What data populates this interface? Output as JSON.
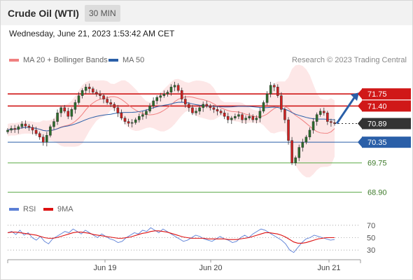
{
  "header": {
    "symbol": "Crude Oil (WTI)",
    "timeframe": "30 MIN",
    "timestamp": "Wednesday, June 21, 2023 1:53:42 AM CET"
  },
  "legend": {
    "ma20": {
      "label": "MA 20 + Bollinger Bands",
      "color": "#f08080"
    },
    "ma50": {
      "label": "MA 50",
      "color": "#2a5fa8"
    },
    "credit": "Research © 2023 Trading Central"
  },
  "rsi_legend": {
    "rsi": {
      "label": "RSI",
      "color": "#5b7fd6"
    },
    "ma9": {
      "label": "9MA",
      "color": "#dd1111"
    }
  },
  "colors": {
    "resistance": "#d01818",
    "pivot": "#2a5fa8",
    "support": "#5aaa46",
    "candle_up": "#2c6e2c",
    "candle_down": "#d02020",
    "band_fill": "#fde3e3",
    "arrow": "#2a5fa8",
    "last_price": "#333333"
  },
  "chart_data": [
    {
      "type": "candlestick",
      "title": "Crude Oil (WTI)",
      "xlabel": "",
      "ylabel": "",
      "x_tick_labels": [
        "Jun 19",
        "Jun 20",
        "Jun 21"
      ],
      "ylim": [
        68.75,
        72.2
      ],
      "last_price": 70.89,
      "levels": [
        {
          "value": 71.75,
          "label": "71.75",
          "kind": "resistance",
          "tag": "box"
        },
        {
          "value": 71.4,
          "label": "71.40",
          "kind": "resistance",
          "tag": "box"
        },
        {
          "value": 70.35,
          "label": "70.35",
          "kind": "pivot",
          "tag": "box"
        },
        {
          "value": 69.75,
          "label": "69.75",
          "kind": "support",
          "tag": "text"
        },
        {
          "value": 68.9,
          "label": "68.90",
          "kind": "support",
          "tag": "text"
        }
      ],
      "forecast_arrow": {
        "from": 70.89,
        "to": 71.75
      },
      "close_series": [
        70.7,
        70.75,
        70.72,
        70.8,
        70.88,
        70.82,
        70.78,
        70.7,
        70.6,
        70.5,
        70.35,
        70.55,
        70.8,
        70.95,
        71.2,
        71.35,
        71.25,
        71.1,
        71.3,
        71.5,
        71.7,
        71.85,
        71.95,
        71.9,
        71.8,
        71.75,
        71.7,
        71.6,
        71.5,
        71.45,
        71.35,
        71.2,
        71.05,
        70.95,
        70.9,
        70.92,
        71.0,
        71.1,
        71.15,
        71.25,
        71.4,
        71.55,
        71.65,
        71.7,
        71.75,
        71.8,
        71.95,
        72.0,
        71.85,
        71.6,
        71.45,
        71.35,
        71.2,
        71.25,
        71.35,
        71.45,
        71.4,
        71.35,
        71.3,
        71.25,
        71.2,
        71.1,
        71.0,
        71.05,
        71.1,
        71.15,
        71.0,
        71.05,
        71.1,
        71.0,
        71.05,
        71.25,
        71.5,
        71.75,
        72.0,
        71.95,
        71.7,
        71.3,
        71.0,
        70.4,
        69.75,
        69.9,
        70.2,
        70.35,
        70.5,
        70.7,
        70.95,
        71.15,
        71.25,
        71.2,
        70.95,
        70.92,
        70.89
      ]
    },
    {
      "type": "line",
      "title": "",
      "xlabel": "",
      "ylabel": "",
      "ylim": [
        20,
        80
      ],
      "y_ticks": [
        70,
        50,
        30
      ],
      "series": [
        {
          "name": "RSI",
          "values": [
            58,
            60,
            55,
            62,
            54,
            58,
            50,
            46,
            52,
            44,
            40,
            48,
            52,
            56,
            60,
            58,
            64,
            60,
            56,
            62,
            58,
            54,
            50,
            56,
            52,
            48,
            46,
            42,
            44,
            50,
            54,
            58,
            56,
            62,
            60,
            66,
            62,
            58,
            64,
            60,
            56,
            52,
            48,
            44,
            46,
            50,
            54,
            52,
            48,
            46,
            44,
            48,
            52,
            48,
            46,
            42,
            44,
            50,
            54,
            50,
            56,
            60,
            64,
            62,
            58,
            54,
            50,
            46,
            40,
            30,
            26,
            34,
            42,
            48,
            50,
            54,
            52,
            50,
            48,
            46,
            47
          ]
        },
        {
          "name": "9MA",
          "values": [
            58,
            59,
            59,
            58,
            57,
            56,
            55,
            54,
            52,
            50,
            49,
            49,
            50,
            52,
            54,
            56,
            58,
            59,
            59,
            58,
            57,
            55,
            54,
            53,
            52,
            51,
            50,
            49,
            49,
            50,
            51,
            53,
            55,
            57,
            58,
            60,
            61,
            61,
            60,
            59,
            57,
            55,
            53,
            51,
            50,
            49,
            49,
            49,
            49,
            48,
            48,
            48,
            48,
            48,
            47,
            47,
            47,
            48,
            49,
            50,
            52,
            54,
            56,
            58,
            58,
            57,
            56,
            54,
            51,
            47,
            43,
            41,
            41,
            42,
            44,
            46,
            48,
            49,
            50,
            50,
            50
          ]
        }
      ]
    }
  ]
}
